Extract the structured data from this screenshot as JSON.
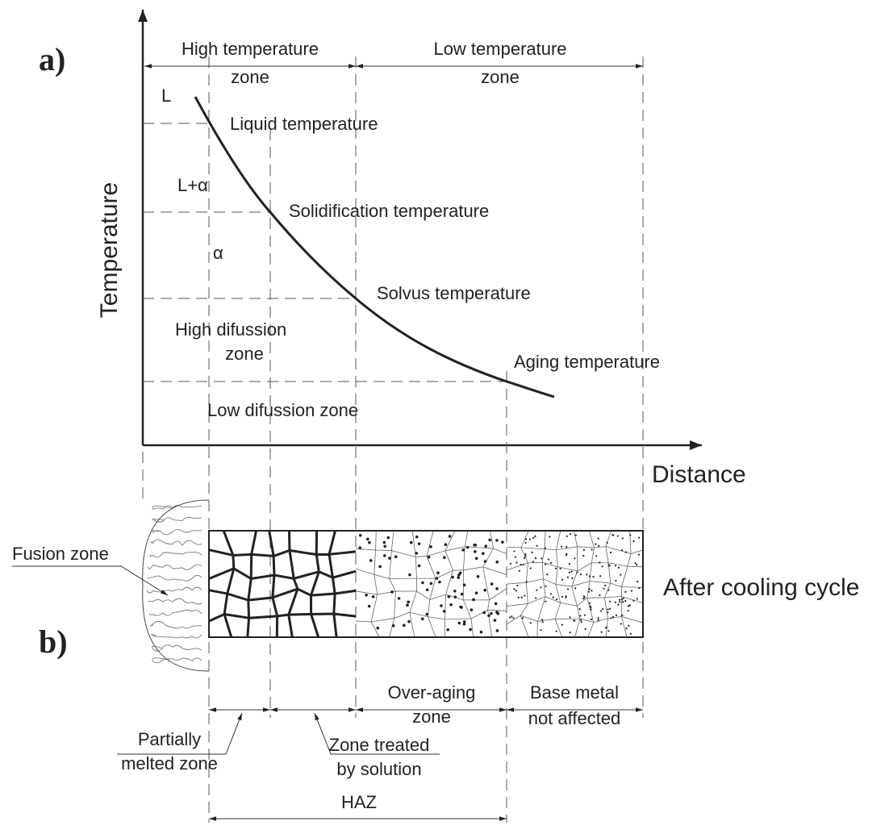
{
  "panel_a": {
    "label": "a)",
    "y_axis_title": "Temperature",
    "x_axis_title": "Distance",
    "zones": {
      "high_temperature": [
        "High temperature",
        "zone"
      ],
      "low_temperature": [
        "Low temperature",
        "zone"
      ]
    },
    "phases": {
      "liquid": "L",
      "liquid_alpha": "L+α",
      "alpha": "α"
    },
    "temperatures": {
      "liquid": "Liquid temperature",
      "solidification": "Solidification temperature",
      "solvus": "Solvus temperature",
      "aging": "Aging temperature"
    },
    "diffusion": {
      "high": [
        "High difussion",
        "zone"
      ],
      "low": "Low difussion zone"
    }
  },
  "panel_b": {
    "label": "b)",
    "fusion_zone": "Fusion zone",
    "caption": "After cooling cycle",
    "regions": {
      "over_aging": [
        "Over-aging",
        "zone"
      ],
      "base_metal": [
        "Base metal",
        "not affected"
      ],
      "partially_melted": [
        "Partially",
        "melted zone"
      ],
      "solution_treated": [
        "Zone treated",
        "by solution"
      ],
      "haz": "HAZ"
    }
  }
}
